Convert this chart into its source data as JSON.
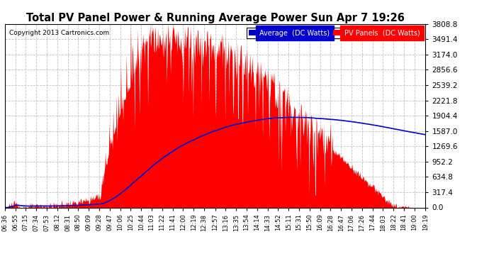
{
  "title": "Total PV Panel Power & Running Average Power Sun Apr 7 19:26",
  "copyright": "Copyright 2013 Cartronics.com",
  "legend_avg": "Average  (DC Watts)",
  "legend_pv": "PV Panels  (DC Watts)",
  "bg_color": "#ffffff",
  "plot_bg_color": "#ffffff",
  "grid_color": "#c0c0c0",
  "pv_color": "#ff0000",
  "avg_color": "#0000cc",
  "ymin": 0.0,
  "ymax": 3808.8,
  "ytick_step": 317.4,
  "x_labels": [
    "06:36",
    "06:55",
    "07:15",
    "07:34",
    "07:53",
    "08:12",
    "08:31",
    "08:50",
    "09:09",
    "09:28",
    "09:47",
    "10:06",
    "10:25",
    "10:44",
    "11:03",
    "11:22",
    "11:41",
    "12:00",
    "12:19",
    "12:38",
    "12:57",
    "13:16",
    "13:35",
    "13:54",
    "14:14",
    "14:33",
    "14:52",
    "15:11",
    "15:31",
    "15:50",
    "16:09",
    "16:28",
    "16:47",
    "17:06",
    "17:26",
    "17:44",
    "18:03",
    "18:22",
    "18:41",
    "19:00",
    "19:19"
  ]
}
